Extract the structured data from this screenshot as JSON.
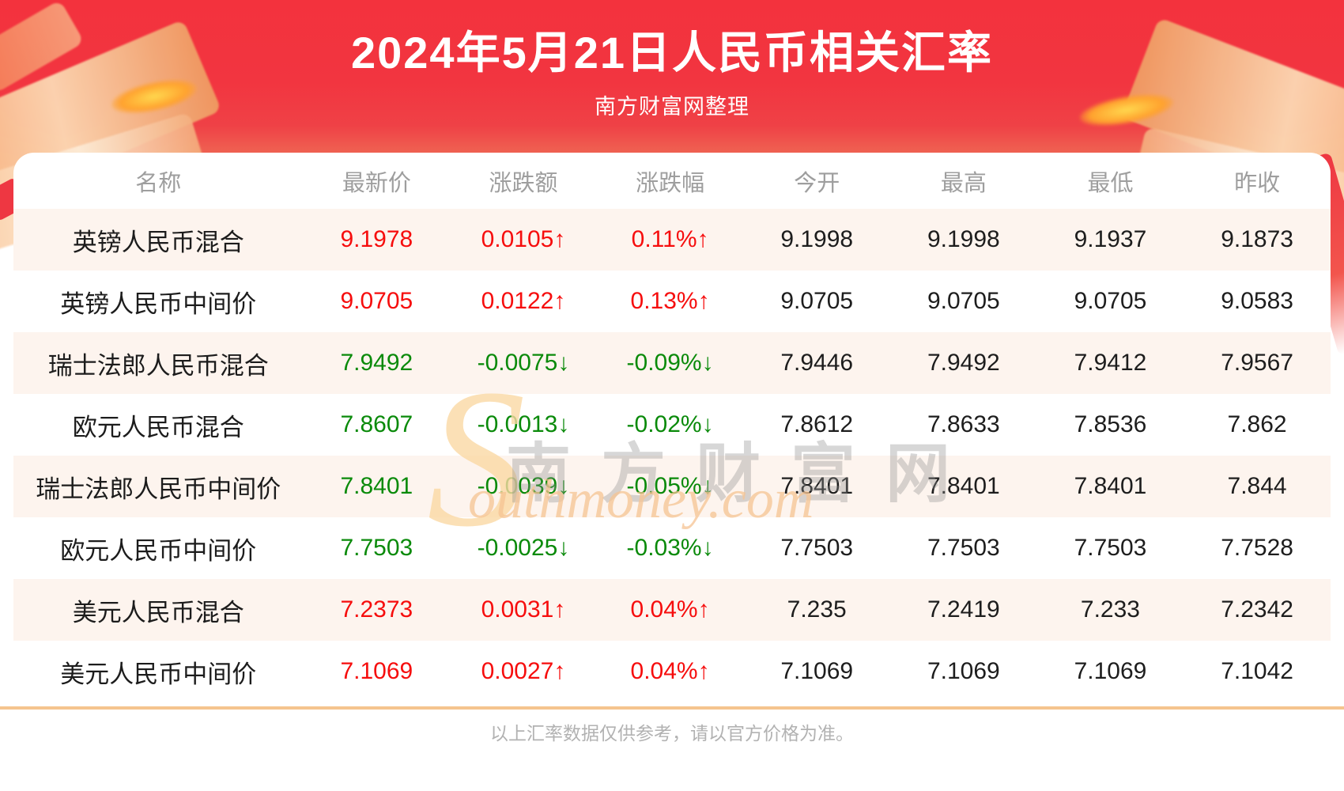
{
  "header": {
    "title": "2024年5月21日人民币相关汇率",
    "subtitle": "南方财富网整理"
  },
  "watermark": {
    "initial": "S",
    "cn_text": "南方财富网",
    "en_text": "outhmoney.com"
  },
  "footer": {
    "disclaimer": "以上汇率数据仅供参考，请以官方价格为准。"
  },
  "colors": {
    "banner_red": "#f23540",
    "up_red": "#f60d0d",
    "down_green": "#0a8a0a",
    "row_alt_bg": "#fdf4ee",
    "divider_orange": "#f5c48e"
  },
  "chart_data": {
    "type": "table",
    "title": "2024年5月21日人民币相关汇率",
    "columns": [
      "名称",
      "最新价",
      "涨跌额",
      "涨跌幅",
      "今开",
      "最高",
      "最低",
      "昨收"
    ],
    "rows": [
      {
        "name": "英镑人民币混合",
        "latest": "9.1978",
        "change": "0.0105↑",
        "pct": "0.11%↑",
        "direction": "up",
        "open": "9.1998",
        "high": "9.1998",
        "low": "9.1937",
        "prev": "9.1873"
      },
      {
        "name": "英镑人民币中间价",
        "latest": "9.0705",
        "change": "0.0122↑",
        "pct": "0.13%↑",
        "direction": "up",
        "open": "9.0705",
        "high": "9.0705",
        "low": "9.0705",
        "prev": "9.0583"
      },
      {
        "name": "瑞士法郎人民币混合",
        "latest": "7.9492",
        "change": "-0.0075↓",
        "pct": "-0.09%↓",
        "direction": "down",
        "open": "7.9446",
        "high": "7.9492",
        "low": "7.9412",
        "prev": "7.9567"
      },
      {
        "name": "欧元人民币混合",
        "latest": "7.8607",
        "change": "-0.0013↓",
        "pct": "-0.02%↓",
        "direction": "down",
        "open": "7.8612",
        "high": "7.8633",
        "low": "7.8536",
        "prev": "7.862"
      },
      {
        "name": "瑞士法郎人民币中间价",
        "latest": "7.8401",
        "change": "-0.0039↓",
        "pct": "-0.05%↓",
        "direction": "down",
        "open": "7.8401",
        "high": "7.8401",
        "low": "7.8401",
        "prev": "7.844"
      },
      {
        "name": "欧元人民币中间价",
        "latest": "7.7503",
        "change": "-0.0025↓",
        "pct": "-0.03%↓",
        "direction": "down",
        "open": "7.7503",
        "high": "7.7503",
        "low": "7.7503",
        "prev": "7.7528"
      },
      {
        "name": "美元人民币混合",
        "latest": "7.2373",
        "change": "0.0031↑",
        "pct": "0.04%↑",
        "direction": "up",
        "open": "7.235",
        "high": "7.2419",
        "low": "7.233",
        "prev": "7.2342"
      },
      {
        "name": "美元人民币中间价",
        "latest": "7.1069",
        "change": "0.0027↑",
        "pct": "0.04%↑",
        "direction": "up",
        "open": "7.1069",
        "high": "7.1069",
        "low": "7.1069",
        "prev": "7.1042"
      }
    ]
  }
}
